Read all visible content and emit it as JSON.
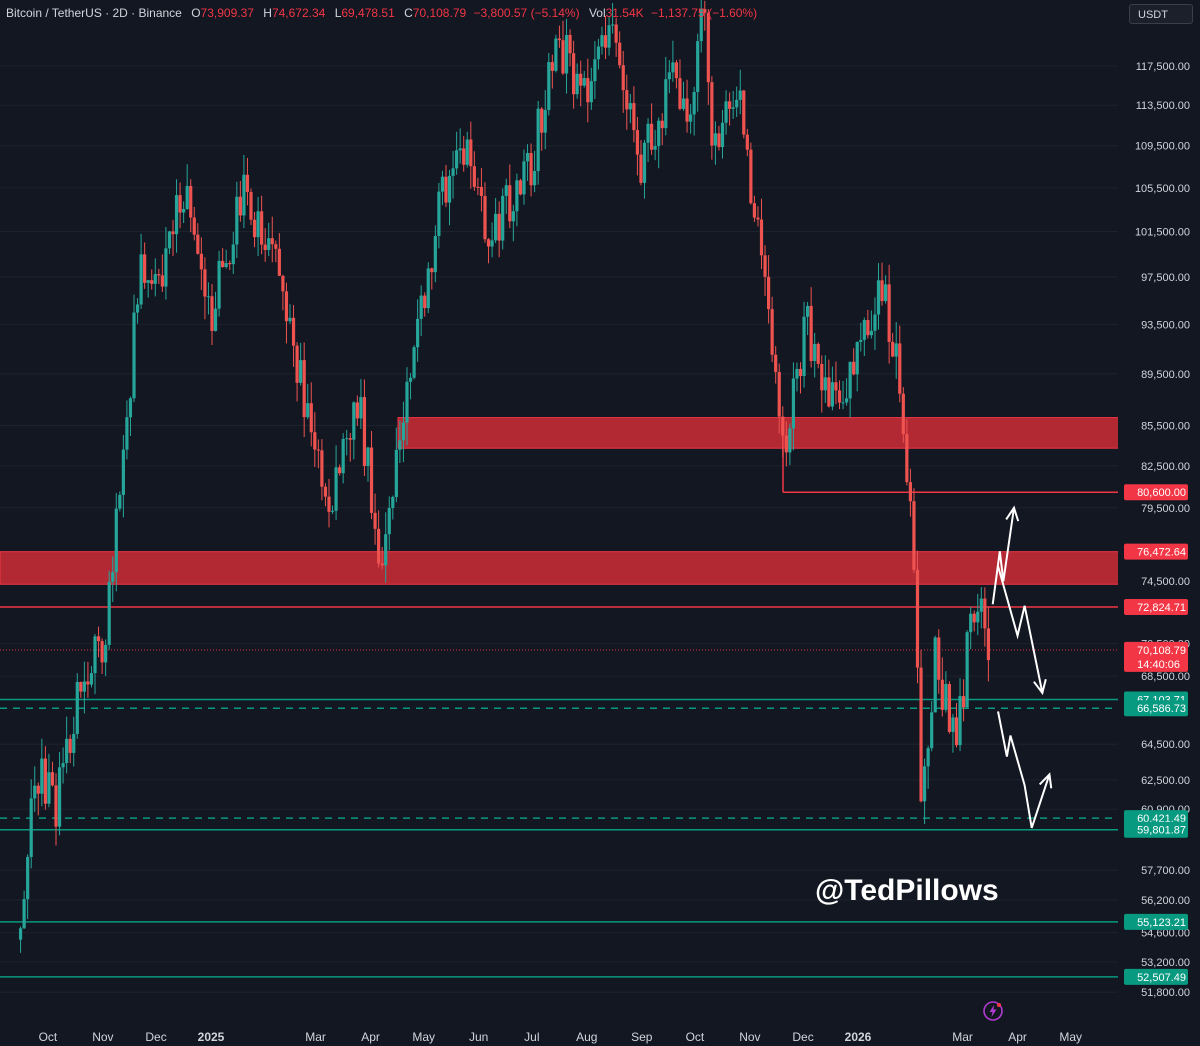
{
  "header": {
    "symbol": "Bitcoin / TetherUS · 2D · Binance",
    "open_label": "O",
    "open": "73,909.37",
    "high_label": "H",
    "high": "74,672.34",
    "low_label": "L",
    "low": "69,478.51",
    "close_label": "C",
    "close": "70,108.79",
    "change": "−3,800.57 (−5.14%)",
    "vol_label": "Vol",
    "vol": "31.54K",
    "vol_change": "−1,137.75 (−1.60%)"
  },
  "currency_button": "USDT",
  "watermark": "@TedPillows",
  "colors": {
    "background": "#131722",
    "up": "#26a69a",
    "down": "#ef5350",
    "resistance": "#b22833",
    "support": "#089981",
    "arrows": "#ffffff"
  },
  "chart_data": {
    "type": "candlestick",
    "y_scale": "log",
    "ylim": [
      51200,
      121000
    ],
    "x_tick_labels": [
      "Oct",
      "Nov",
      "Dec",
      "2025",
      "Mar",
      "Apr",
      "May",
      "Jun",
      "Jul",
      "Aug",
      "Sep",
      "Oct",
      "Nov",
      "Dec",
      "2026",
      "Mar",
      "Apr",
      "May"
    ],
    "x_tick_bold": [
      false,
      false,
      false,
      true,
      false,
      false,
      false,
      false,
      false,
      false,
      false,
      false,
      false,
      false,
      true,
      false,
      false,
      false
    ],
    "y_tick_labels": [
      117500,
      113500,
      109500,
      105500,
      101500,
      97500,
      93500,
      89500,
      85500,
      82500,
      79500,
      74500,
      70500,
      68500,
      64500,
      62500,
      60900,
      57700,
      56200,
      54600,
      53200,
      51800
    ],
    "price_path": [
      [
        "2024-09-15",
        55000
      ],
      [
        "2024-09-25",
        63000
      ],
      [
        "2024-10-05",
        61000
      ],
      [
        "2024-10-20",
        68500
      ],
      [
        "2024-11-01",
        70000
      ],
      [
        "2024-11-10",
        80000
      ],
      [
        "2024-11-22",
        98000
      ],
      [
        "2024-12-05",
        97000
      ],
      [
        "2024-12-17",
        106000
      ],
      [
        "2024-12-30",
        93500
      ],
      [
        "2025-01-20",
        105000
      ],
      [
        "2025-02-10",
        97000
      ],
      [
        "2025-02-27",
        84000
      ],
      [
        "2025-03-10",
        80000
      ],
      [
        "2025-03-25",
        87500
      ],
      [
        "2025-04-07",
        76000
      ],
      [
        "2025-04-20",
        87000
      ],
      [
        "2025-05-10",
        104000
      ],
      [
        "2025-05-22",
        110000
      ],
      [
        "2025-06-05",
        101500
      ],
      [
        "2025-06-20",
        104000
      ],
      [
        "2025-07-02",
        108000
      ],
      [
        "2025-07-14",
        121000
      ],
      [
        "2025-08-01",
        113500
      ],
      [
        "2025-08-14",
        123000
      ],
      [
        "2025-09-01",
        108000
      ],
      [
        "2025-09-20",
        116500
      ],
      [
        "2025-09-28",
        110000
      ],
      [
        "2025-10-06",
        125000
      ],
      [
        "2025-10-11",
        110000
      ],
      [
        "2025-10-25",
        115000
      ],
      [
        "2025-11-05",
        101500
      ],
      [
        "2025-11-21",
        84000
      ],
      [
        "2025-12-03",
        93500
      ],
      [
        "2025-12-20",
        86500
      ],
      [
        "2026-01-05",
        93000
      ],
      [
        "2026-01-14",
        97000
      ],
      [
        "2026-01-25",
        88000
      ],
      [
        "2026-02-01",
        78000
      ],
      [
        "2026-02-06",
        61000
      ],
      [
        "2026-02-14",
        70000
      ],
      [
        "2026-02-25",
        64000
      ],
      [
        "2026-03-06",
        72000
      ],
      [
        "2026-03-12",
        74500
      ],
      [
        "2026-03-16",
        70108
      ]
    ],
    "resistance_zones": [
      {
        "low": 83800,
        "high": 86100
      },
      {
        "low": 74300,
        "high": 76472.64
      }
    ],
    "horizontal_levels": [
      {
        "value": 80600.0,
        "label": "80,600.00",
        "color": "#f23645",
        "style": "solid"
      },
      {
        "value": 76472.64,
        "label": "76,472.64",
        "color": "#f23645",
        "style": "none"
      },
      {
        "value": 72824.71,
        "label": "72,824.71",
        "color": "#f23645",
        "style": "solid"
      },
      {
        "value": 67103.71,
        "label": "67,103.71",
        "color": "#089981",
        "style": "solid"
      },
      {
        "value": 66586.73,
        "label": "66,586.73",
        "color": "#089981",
        "style": "dashed"
      },
      {
        "value": 60421.49,
        "label": "60,421.49",
        "color": "#089981",
        "style": "dashed"
      },
      {
        "value": 59801.87,
        "label": "59,801.87",
        "color": "#089981",
        "style": "solid"
      },
      {
        "value": 55123.21,
        "label": "55,123.21",
        "color": "#089981",
        "style": "solid"
      },
      {
        "value": 52507.49,
        "label": "52,507.49",
        "color": "#089981",
        "style": "solid"
      }
    ],
    "last_price": {
      "value": 70108.79,
      "label": "70,108.79",
      "countdown": "14:40:06"
    },
    "projection_paths": [
      [
        [
          "2026-03-18",
          73000
        ],
        [
          "2026-03-22",
          76500
        ],
        [
          "2026-03-24",
          74500
        ],
        [
          "2026-03-30",
          79500
        ]
      ],
      [
        [
          "2026-03-21",
          75500
        ],
        [
          "2026-04-01",
          71000
        ],
        [
          "2026-04-05",
          72900
        ],
        [
          "2026-04-15",
          67500
        ]
      ],
      [
        [
          "2026-03-21",
          66400
        ],
        [
          "2026-03-26",
          63800
        ],
        [
          "2026-03-28",
          65000
        ],
        [
          "2026-04-05",
          62200
        ],
        [
          "2026-04-09",
          59900
        ],
        [
          "2026-04-19",
          62800
        ]
      ]
    ]
  }
}
